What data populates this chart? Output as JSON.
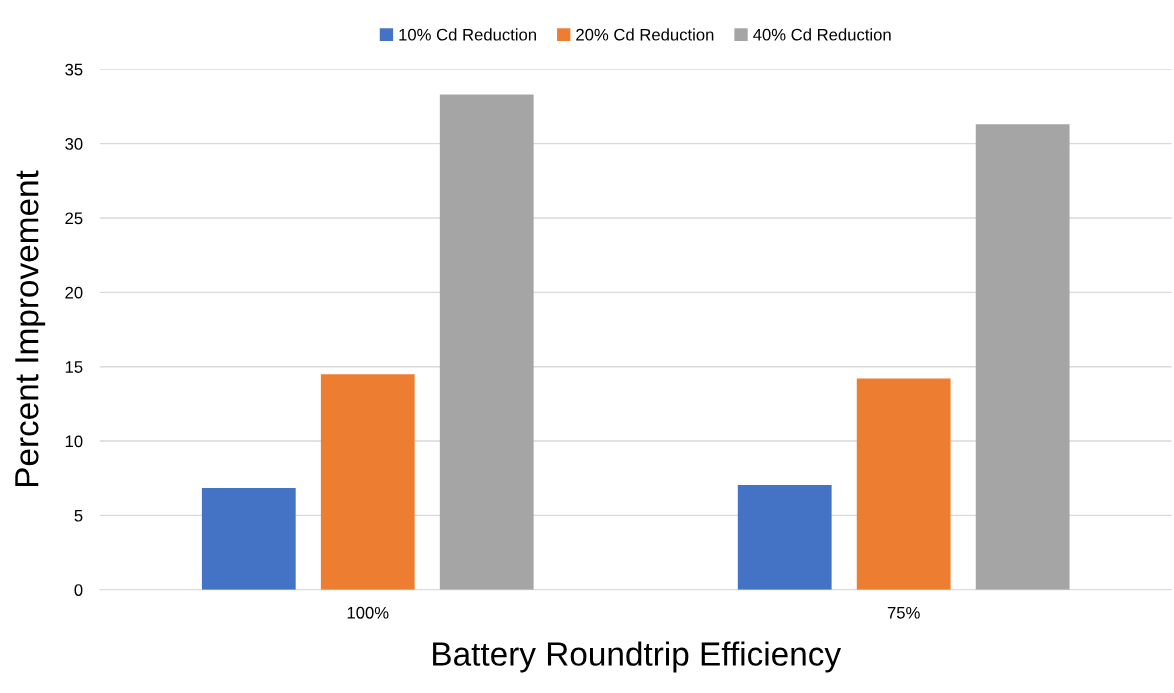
{
  "chart_data": {
    "type": "bar",
    "xlabel": "Battery Roundtrip Efficiency",
    "ylabel": "Percent Improvement",
    "categories": [
      "100%",
      "75%"
    ],
    "series": [
      {
        "name": "10% Cd Reduction",
        "color": "#4472c4",
        "values": [
          6.85,
          7.05
        ]
      },
      {
        "name": "20% Cd Reduction",
        "color": "#ed7d31",
        "values": [
          14.5,
          14.2
        ]
      },
      {
        "name": "40% Cd Reduction",
        "color": "#a5a5a5",
        "values": [
          33.3,
          31.3
        ]
      }
    ],
    "ylim": [
      0,
      35
    ],
    "yticks": [
      0,
      5,
      10,
      15,
      20,
      25,
      30,
      35
    ],
    "grid": "y",
    "legend": "top"
  }
}
